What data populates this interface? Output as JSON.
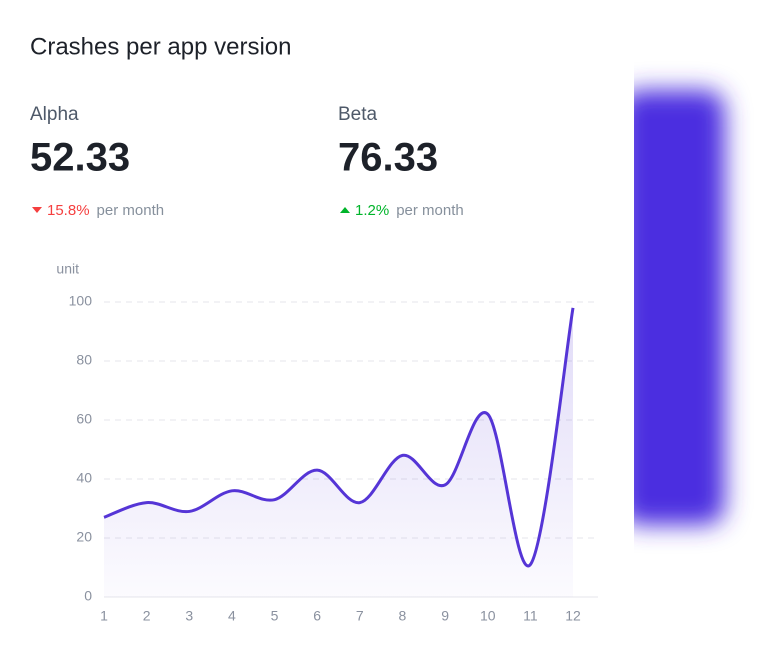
{
  "header": {
    "title": "Crashes per app version"
  },
  "stats": [
    {
      "label": "Alpha",
      "value": 52.33,
      "change": "15.8%",
      "direction": "down",
      "period": "per month"
    },
    {
      "label": "Beta",
      "value": 76.33,
      "change": "1.2%",
      "direction": "up",
      "period": "per month"
    }
  ],
  "chart_data": {
    "type": "line",
    "y_label": "unit",
    "x": [
      1,
      2,
      3,
      4,
      5,
      6,
      7,
      8,
      9,
      10,
      11,
      12
    ],
    "values": [
      27,
      32,
      29,
      36,
      33,
      43,
      32,
      48,
      38,
      62,
      11,
      98
    ],
    "color": "#5535d6",
    "area": true,
    "xlim": [
      1,
      12
    ],
    "xticks": [
      1,
      2,
      3,
      4,
      5,
      6,
      7,
      8,
      9,
      10,
      11,
      12
    ],
    "ylim": [
      0,
      100
    ],
    "yticks": [
      0,
      20,
      40,
      60,
      80,
      100
    ],
    "grid": true
  }
}
